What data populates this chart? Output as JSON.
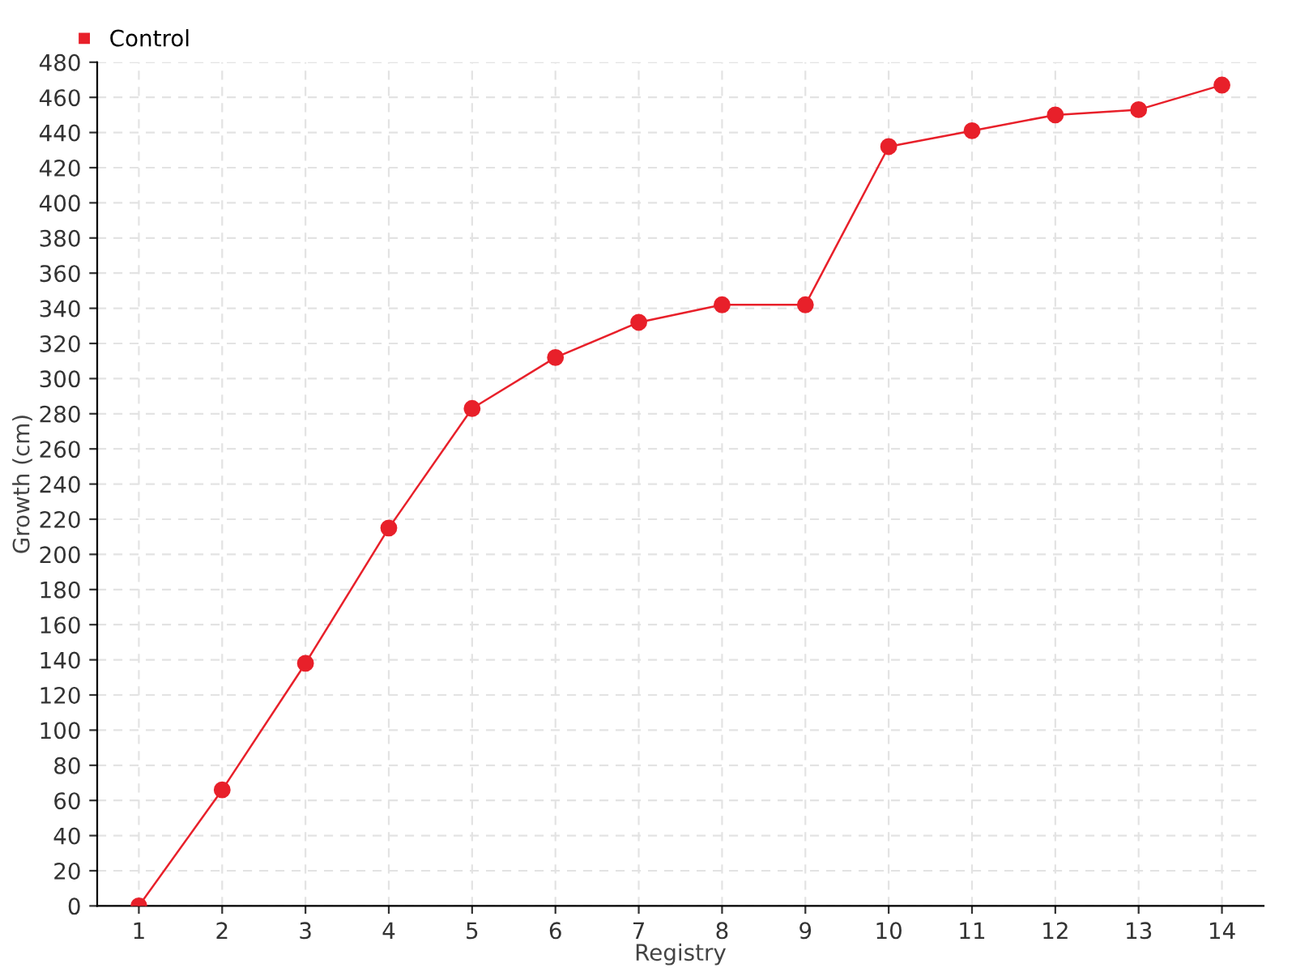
{
  "chart_data": {
    "type": "line",
    "xlabel": "Registry",
    "ylabel": "Growth (cm)",
    "categories": [
      "1",
      "2",
      "3",
      "4",
      "5",
      "6",
      "7",
      "8",
      "9",
      "10",
      "11",
      "12",
      "13",
      "14"
    ],
    "series": [
      {
        "name": "Control",
        "color": "#e8202a",
        "values": [
          0,
          66,
          138,
          215,
          283,
          312,
          332,
          342,
          342,
          432,
          441,
          450,
          453,
          467
        ]
      }
    ],
    "ylim": [
      0,
      480
    ],
    "yticks": [
      0,
      20,
      40,
      60,
      80,
      100,
      120,
      140,
      160,
      180,
      200,
      220,
      240,
      260,
      280,
      300,
      320,
      340,
      360,
      380,
      400,
      420,
      440,
      460,
      480
    ],
    "grid": true,
    "legend": "top left",
    "marker": "circle",
    "line_style": "solid"
  }
}
